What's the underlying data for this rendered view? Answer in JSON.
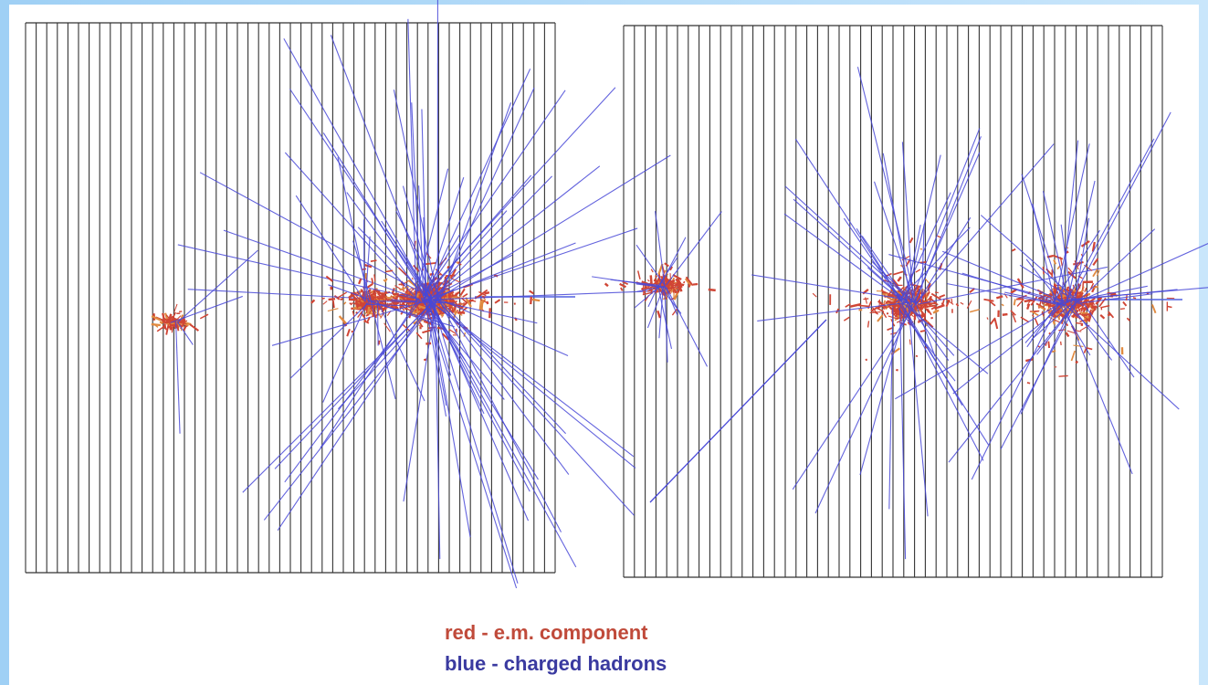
{
  "legend": {
    "red": "red - e.m. component",
    "blue": "blue - charged hadrons"
  }
}
